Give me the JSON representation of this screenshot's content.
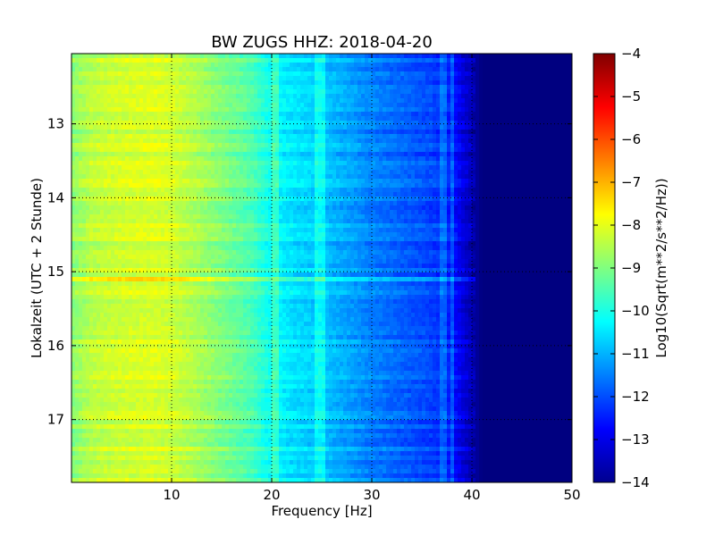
{
  "chart_data": {
    "type": "heatmap",
    "title": "BW ZUGS HHZ: 2018-04-20",
    "xlabel": "Frequency [Hz]",
    "ylabel": "Lokalzeit (UTC + 2 Stunde)",
    "xlim": [
      0,
      50
    ],
    "ylim": [
      17.85,
      12.05
    ],
    "y_inverted": true,
    "x_ticks": [
      10,
      20,
      30,
      40,
      50
    ],
    "y_ticks": [
      13,
      14,
      15,
      16,
      17
    ],
    "grid": true,
    "colormap": "jet",
    "colorbar": {
      "label": "Log10(Sqrt(m**2/s**2/Hz))",
      "range": [
        -14,
        -4
      ],
      "ticks": [
        -4,
        -5,
        -6,
        -7,
        -8,
        -9,
        -10,
        -11,
        -12,
        -13,
        -14
      ]
    },
    "spectrum_profile": {
      "frequency_hz": [
        0,
        2,
        5,
        8,
        10,
        12,
        15,
        18,
        20,
        22,
        25,
        28,
        30,
        33,
        36,
        38,
        39,
        40,
        41,
        50
      ],
      "log10_amplitude": [
        -8.9,
        -8.4,
        -8.2,
        -8.1,
        -8.2,
        -8.5,
        -9.0,
        -9.5,
        -10.2,
        -10.5,
        -10.8,
        -11.2,
        -11.5,
        -11.8,
        -12.1,
        -12.5,
        -13.0,
        -13.5,
        -14,
        -14
      ]
    },
    "spectral_lines_hz": [
      20.3,
      24.4,
      25.0,
      37.2,
      38.0
    ],
    "strong_event_times": [
      15.1
    ]
  }
}
